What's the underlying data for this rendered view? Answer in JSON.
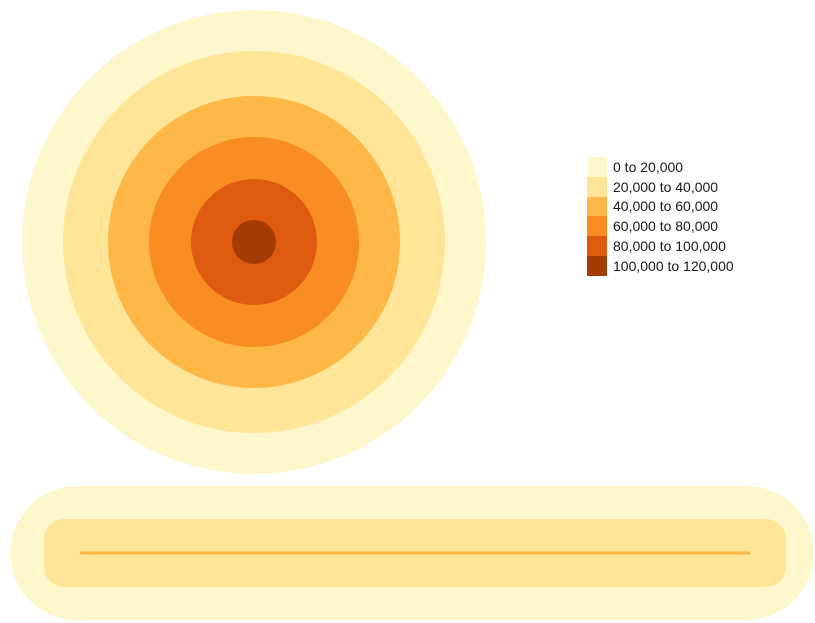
{
  "legend": {
    "classes": [
      {
        "label": "0 to 20,000",
        "min": 0,
        "max": 20000,
        "color": "#fff7cc"
      },
      {
        "label": "20,000 to 40,000",
        "min": 20000,
        "max": 40000,
        "color": "#fee597"
      },
      {
        "label": "40,000 to 60,000",
        "min": 40000,
        "max": 60000,
        "color": "#feb847"
      },
      {
        "label": "60,000 to 80,000",
        "min": 60000,
        "max": 80000,
        "color": "#f98c22"
      },
      {
        "label": "80,000 to 100,000",
        "min": 80000,
        "max": 100000,
        "color": "#de5a0e"
      },
      {
        "label": "100,000 to 120,000",
        "min": 100000,
        "max": 120000,
        "color": "#a33b04"
      }
    ]
  },
  "features": [
    {
      "name": "circular-density-surface",
      "classes_shown": [
        0,
        1,
        2,
        3,
        4,
        5
      ]
    },
    {
      "name": "linear-density-surface",
      "classes_shown": [
        0,
        1,
        2
      ]
    }
  ]
}
